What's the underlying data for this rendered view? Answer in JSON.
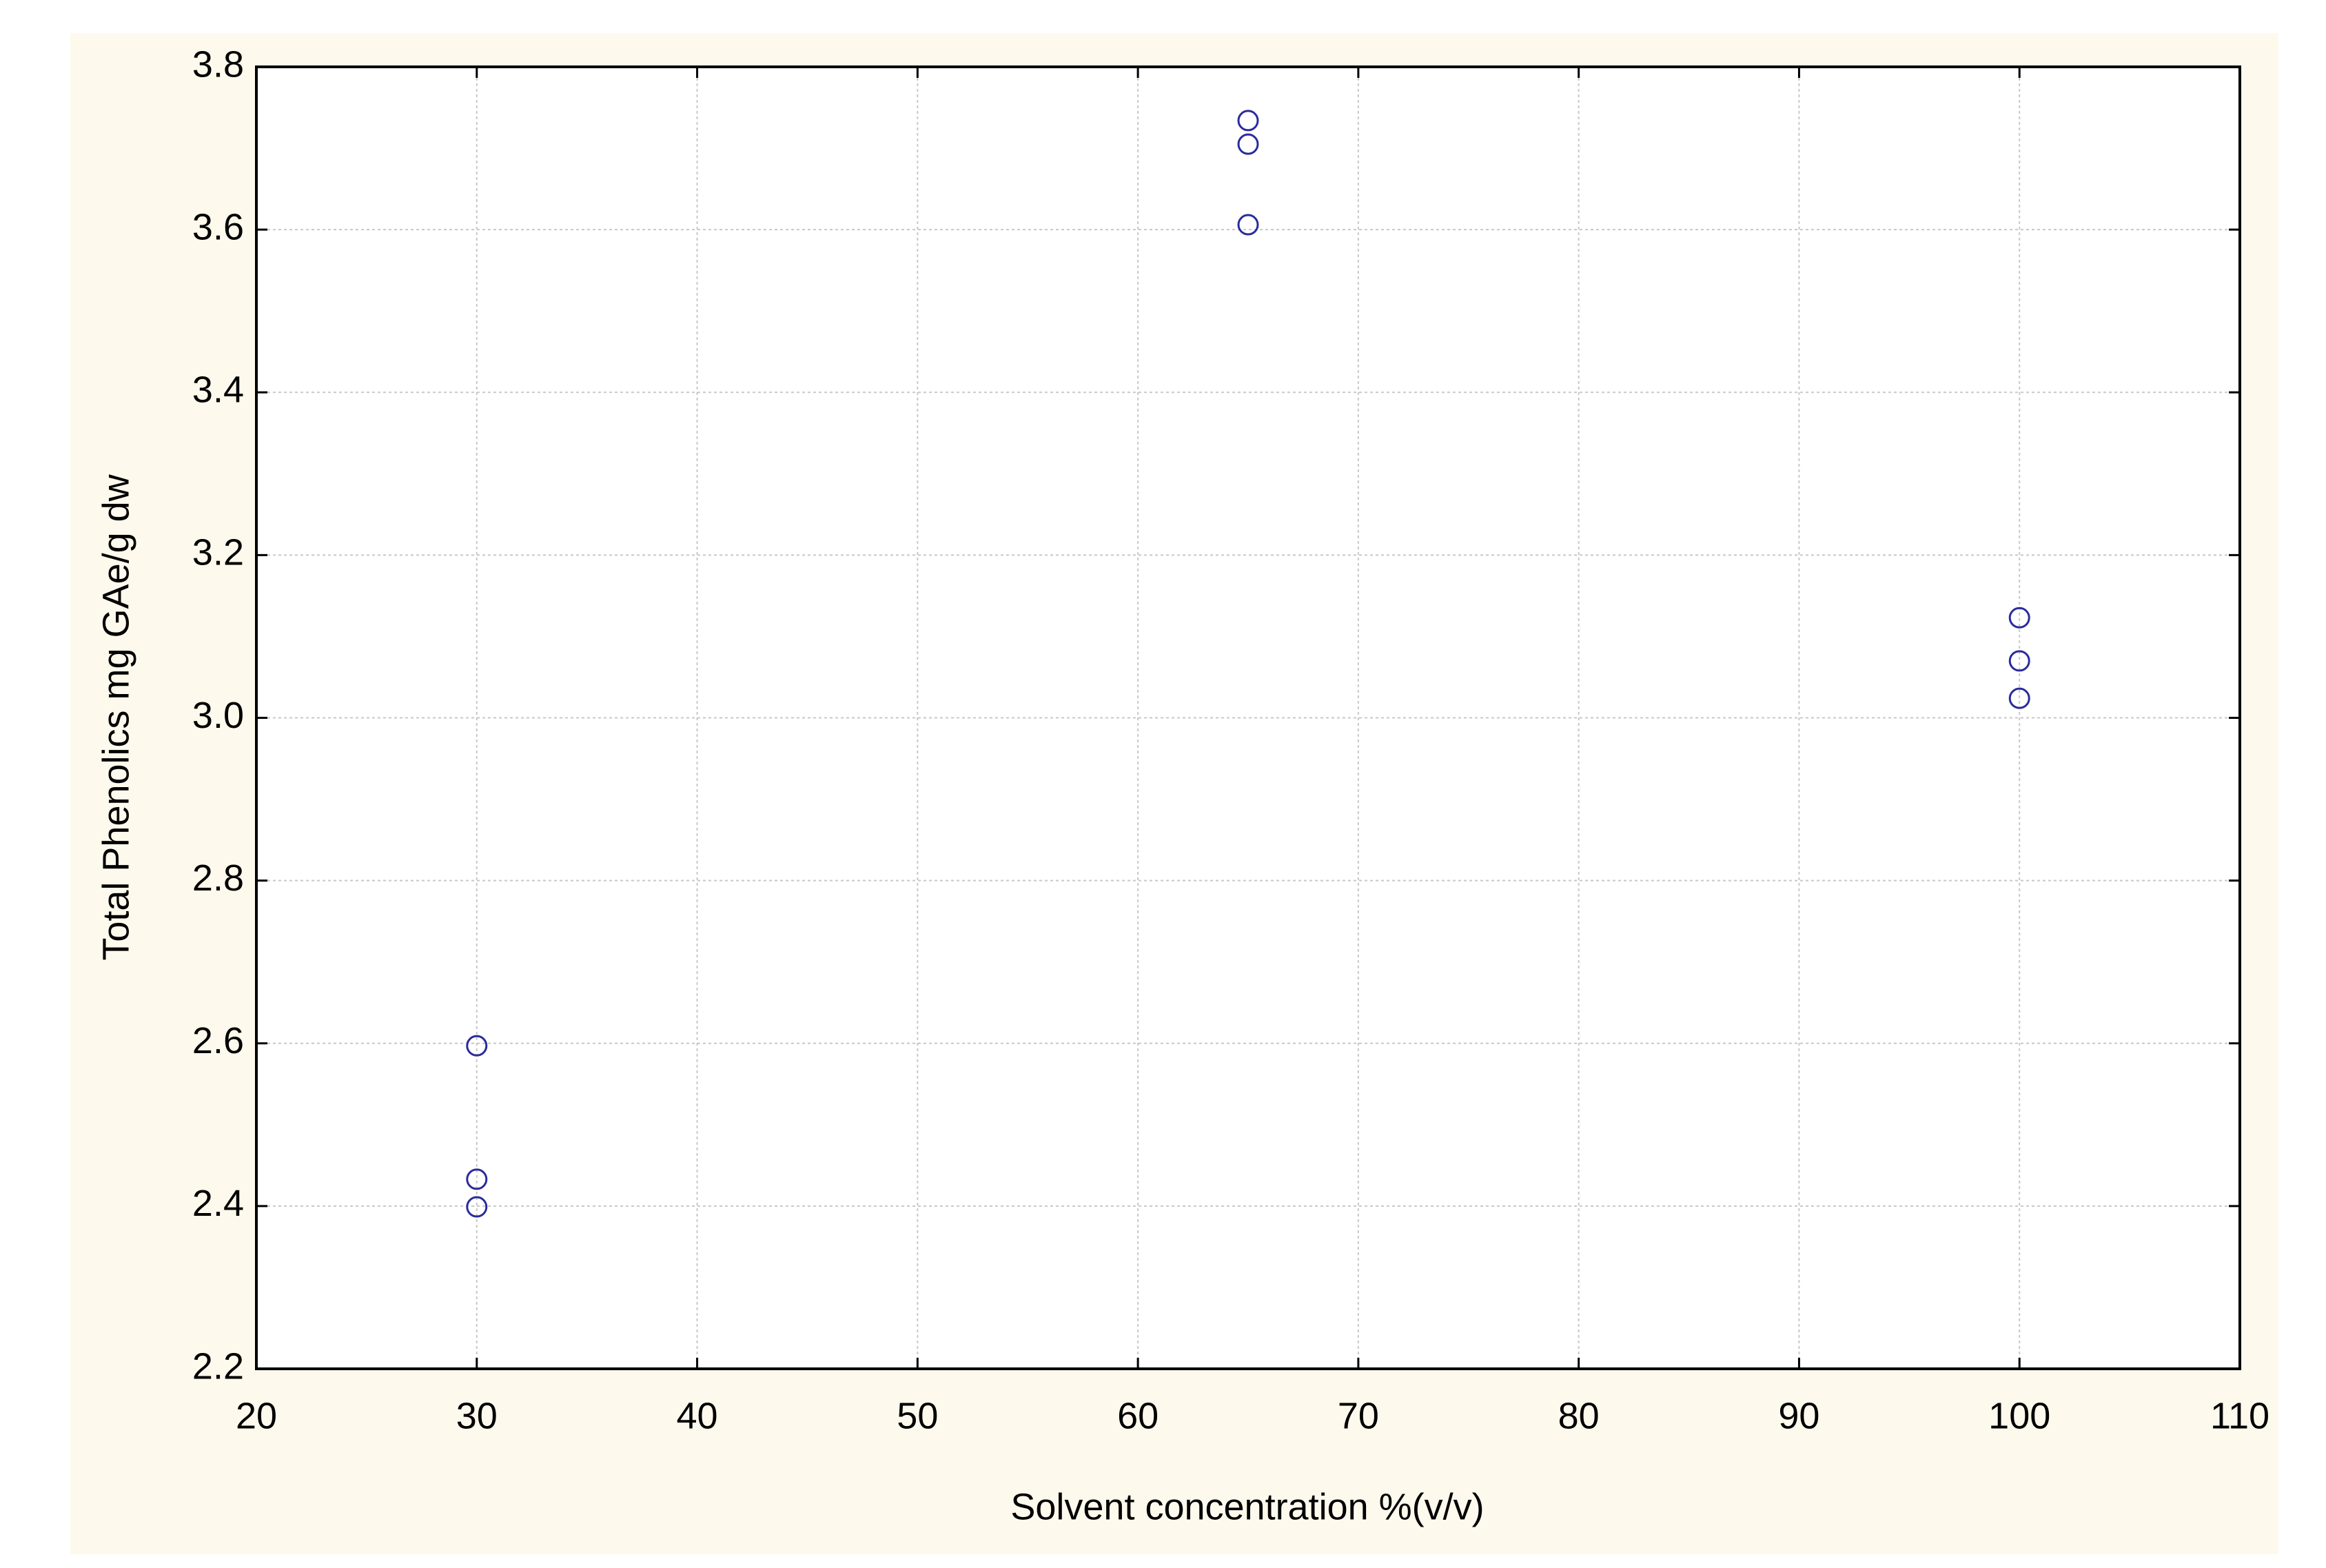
{
  "chart_data": {
    "type": "scatter",
    "x_label": "Solvent concentration %(v/v)",
    "y_label": "Total Phenolics mg GAe/g dw",
    "x": [
      30,
      30,
      30,
      65,
      65,
      65,
      100,
      100,
      100
    ],
    "values": [
      2.597,
      2.433,
      2.399,
      3.734,
      3.705,
      3.606,
      3.123,
      3.07,
      3.024
    ],
    "color": "#2b2b9e",
    "xlim": [
      20,
      110
    ],
    "xticks": [
      20,
      30,
      40,
      50,
      60,
      70,
      80,
      90,
      100,
      110
    ],
    "ylim": [
      2.2,
      3.8
    ],
    "yticks": [
      {
        "value": 2.2,
        "label": "2.2"
      },
      {
        "value": 2.4,
        "label": "2.4"
      },
      {
        "value": 2.6,
        "label": "2.6"
      },
      {
        "value": 2.8,
        "label": "2.8"
      },
      {
        "value": 3.0,
        "label": "3.0"
      },
      {
        "value": 3.2,
        "label": "3.2"
      },
      {
        "value": 3.4,
        "label": "3.4"
      },
      {
        "value": 3.6,
        "label": "3.6"
      },
      {
        "value": 3.8,
        "label": "3.8"
      }
    ],
    "grid": true
  }
}
